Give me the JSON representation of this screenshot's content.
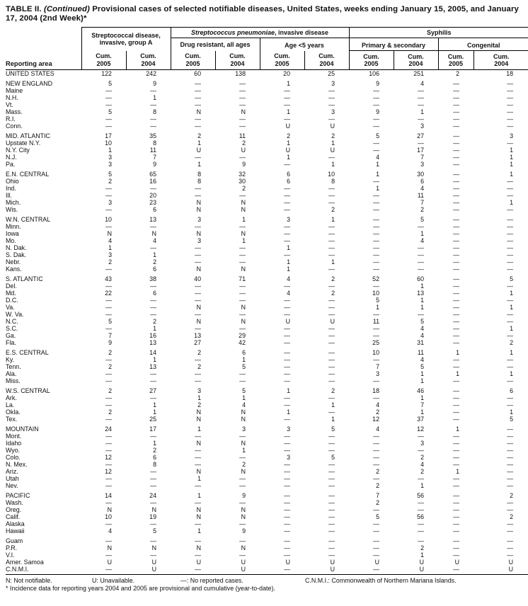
{
  "title": {
    "table_label": "TABLE II.",
    "continued": "(Continued)",
    "rest": " Provisional cases of selected notifiable diseases, United States, weeks ending January 15, 2005, and January 17, 2004 (2nd Week)*"
  },
  "header": {
    "stub": "Reporting area",
    "group_a": "Streptococcal disease, invasive, group A",
    "strep_pneumoniae_italic": "Streptococcus pneumoniae",
    "strep_pneumoniae_rest": ", invasive disease",
    "drug_resistant": "Drug resistant, all ages",
    "age_under5": "Age <5 years",
    "syphilis": "Syphilis",
    "primary_secondary": "Primary & secondary",
    "congenital": "Congenital",
    "cum_label": "Cum.",
    "years": [
      "2005",
      "2004",
      "2005",
      "2004",
      "2005",
      "2004",
      "2005",
      "2004",
      "2005",
      "2004"
    ]
  },
  "rows": [
    {
      "area": "UNITED STATES",
      "gap": false,
      "values": [
        "122",
        "242",
        "60",
        "138",
        "20",
        "25",
        "106",
        "251",
        "2",
        "18"
      ]
    },
    {
      "area": "NEW ENGLAND",
      "gap": true,
      "values": [
        "5",
        "9",
        "—",
        "—",
        "1",
        "3",
        "9",
        "4",
        "—",
        "—"
      ]
    },
    {
      "area": "Maine",
      "gap": false,
      "values": [
        "—",
        "—",
        "—",
        "—",
        "—",
        "—",
        "—",
        "—",
        "—",
        "—"
      ]
    },
    {
      "area": "N.H.",
      "gap": false,
      "values": [
        "—",
        "1",
        "—",
        "—",
        "—",
        "—",
        "—",
        "—",
        "—",
        "—"
      ]
    },
    {
      "area": "Vt.",
      "gap": false,
      "values": [
        "—",
        "—",
        "—",
        "—",
        "—",
        "—",
        "—",
        "—",
        "—",
        "—"
      ]
    },
    {
      "area": "Mass.",
      "gap": false,
      "values": [
        "5",
        "8",
        "N",
        "N",
        "1",
        "3",
        "9",
        "1",
        "—",
        "—"
      ]
    },
    {
      "area": "R.I.",
      "gap": false,
      "values": [
        "—",
        "—",
        "—",
        "—",
        "—",
        "—",
        "—",
        "—",
        "—",
        "—"
      ]
    },
    {
      "area": "Conn.",
      "gap": false,
      "values": [
        "—",
        "—",
        "—",
        "—",
        "U",
        "U",
        "—",
        "3",
        "—",
        "—"
      ]
    },
    {
      "area": "MID. ATLANTIC",
      "gap": true,
      "values": [
        "17",
        "35",
        "2",
        "11",
        "2",
        "2",
        "5",
        "27",
        "—",
        "3"
      ]
    },
    {
      "area": "Upstate N.Y.",
      "gap": false,
      "values": [
        "10",
        "8",
        "1",
        "2",
        "1",
        "1",
        "—",
        "—",
        "—",
        "—"
      ]
    },
    {
      "area": "N.Y. City",
      "gap": false,
      "values": [
        "1",
        "11",
        "U",
        "U",
        "U",
        "U",
        "—",
        "17",
        "—",
        "1"
      ]
    },
    {
      "area": "N.J.",
      "gap": false,
      "values": [
        "3",
        "7",
        "—",
        "—",
        "1",
        "—",
        "4",
        "7",
        "—",
        "1"
      ]
    },
    {
      "area": "Pa.",
      "gap": false,
      "values": [
        "3",
        "9",
        "1",
        "9",
        "—",
        "1",
        "1",
        "3",
        "—",
        "1"
      ]
    },
    {
      "area": "E.N. CENTRAL",
      "gap": true,
      "values": [
        "5",
        "65",
        "8",
        "32",
        "6",
        "10",
        "1",
        "30",
        "—",
        "1"
      ]
    },
    {
      "area": "Ohio",
      "gap": false,
      "values": [
        "2",
        "16",
        "8",
        "30",
        "6",
        "8",
        "—",
        "6",
        "—",
        "—"
      ]
    },
    {
      "area": "Ind.",
      "gap": false,
      "values": [
        "—",
        "—",
        "—",
        "2",
        "—",
        "—",
        "1",
        "4",
        "—",
        "—"
      ]
    },
    {
      "area": "Ill.",
      "gap": false,
      "values": [
        "—",
        "20",
        "—",
        "—",
        "—",
        "—",
        "—",
        "11",
        "—",
        "—"
      ]
    },
    {
      "area": "Mich.",
      "gap": false,
      "values": [
        "3",
        "23",
        "N",
        "N",
        "—",
        "—",
        "—",
        "7",
        "—",
        "1"
      ]
    },
    {
      "area": "Wis.",
      "gap": false,
      "values": [
        "—",
        "6",
        "N",
        "N",
        "—",
        "2",
        "—",
        "2",
        "—",
        "—"
      ]
    },
    {
      "area": "W.N. CENTRAL",
      "gap": true,
      "values": [
        "10",
        "13",
        "3",
        "1",
        "3",
        "1",
        "—",
        "5",
        "—",
        "—"
      ]
    },
    {
      "area": "Minn.",
      "gap": false,
      "values": [
        "—",
        "—",
        "—",
        "—",
        "—",
        "—",
        "—",
        "—",
        "—",
        "—"
      ]
    },
    {
      "area": "Iowa",
      "gap": false,
      "values": [
        "N",
        "N",
        "N",
        "N",
        "—",
        "—",
        "—",
        "1",
        "—",
        "—"
      ]
    },
    {
      "area": "Mo.",
      "gap": false,
      "values": [
        "4",
        "4",
        "3",
        "1",
        "—",
        "—",
        "—",
        "4",
        "—",
        "—"
      ]
    },
    {
      "area": "N. Dak.",
      "gap": false,
      "values": [
        "1",
        "—",
        "—",
        "—",
        "1",
        "—",
        "—",
        "—",
        "—",
        "—"
      ]
    },
    {
      "area": "S. Dak.",
      "gap": false,
      "values": [
        "3",
        "1",
        "—",
        "—",
        "—",
        "—",
        "—",
        "—",
        "—",
        "—"
      ]
    },
    {
      "area": "Nebr.",
      "gap": false,
      "values": [
        "2",
        "2",
        "—",
        "—",
        "1",
        "1",
        "—",
        "—",
        "—",
        "—"
      ]
    },
    {
      "area": "Kans.",
      "gap": false,
      "values": [
        "—",
        "6",
        "N",
        "N",
        "1",
        "—",
        "—",
        "—",
        "—",
        "—"
      ]
    },
    {
      "area": "S. ATLANTIC",
      "gap": true,
      "values": [
        "43",
        "38",
        "40",
        "71",
        "4",
        "2",
        "52",
        "60",
        "—",
        "5"
      ]
    },
    {
      "area": "Del.",
      "gap": false,
      "values": [
        "—",
        "—",
        "—",
        "—",
        "—",
        "—",
        "—",
        "1",
        "—",
        "—"
      ]
    },
    {
      "area": "Md.",
      "gap": false,
      "values": [
        "22",
        "6",
        "—",
        "—",
        "4",
        "2",
        "10",
        "13",
        "—",
        "1"
      ]
    },
    {
      "area": "D.C.",
      "gap": false,
      "values": [
        "—",
        "—",
        "—",
        "—",
        "—",
        "—",
        "5",
        "1",
        "—",
        "—"
      ]
    },
    {
      "area": "Va.",
      "gap": false,
      "values": [
        "—",
        "—",
        "N",
        "N",
        "—",
        "—",
        "1",
        "1",
        "—",
        "1"
      ]
    },
    {
      "area": "W. Va.",
      "gap": false,
      "values": [
        "—",
        "—",
        "—",
        "—",
        "—",
        "—",
        "—",
        "—",
        "—",
        "—"
      ]
    },
    {
      "area": "N.C.",
      "gap": false,
      "values": [
        "5",
        "2",
        "N",
        "N",
        "U",
        "U",
        "11",
        "5",
        "—",
        "—"
      ]
    },
    {
      "area": "S.C.",
      "gap": false,
      "values": [
        "—",
        "1",
        "—",
        "—",
        "—",
        "—",
        "—",
        "4",
        "—",
        "1"
      ]
    },
    {
      "area": "Ga.",
      "gap": false,
      "values": [
        "7",
        "16",
        "13",
        "29",
        "—",
        "—",
        "—",
        "4",
        "—",
        "—"
      ]
    },
    {
      "area": "Fla.",
      "gap": false,
      "values": [
        "9",
        "13",
        "27",
        "42",
        "—",
        "—",
        "25",
        "31",
        "—",
        "2"
      ]
    },
    {
      "area": "E.S. CENTRAL",
      "gap": true,
      "values": [
        "2",
        "14",
        "2",
        "6",
        "—",
        "—",
        "10",
        "11",
        "1",
        "1"
      ]
    },
    {
      "area": "Ky.",
      "gap": false,
      "values": [
        "—",
        "1",
        "—",
        "1",
        "—",
        "—",
        "—",
        "4",
        "—",
        "—"
      ]
    },
    {
      "area": "Tenn.",
      "gap": false,
      "values": [
        "2",
        "13",
        "2",
        "5",
        "—",
        "—",
        "7",
        "5",
        "—",
        "—"
      ]
    },
    {
      "area": "Ala.",
      "gap": false,
      "values": [
        "—",
        "—",
        "—",
        "—",
        "—",
        "—",
        "3",
        "1",
        "1",
        "1"
      ]
    },
    {
      "area": "Miss.",
      "gap": false,
      "values": [
        "—",
        "—",
        "—",
        "—",
        "—",
        "—",
        "—",
        "1",
        "—",
        "—"
      ]
    },
    {
      "area": "W.S. CENTRAL",
      "gap": true,
      "values": [
        "2",
        "27",
        "3",
        "5",
        "1",
        "2",
        "18",
        "46",
        "—",
        "6"
      ]
    },
    {
      "area": "Ark.",
      "gap": false,
      "values": [
        "—",
        "—",
        "1",
        "1",
        "—",
        "—",
        "—",
        "1",
        "—",
        "—"
      ]
    },
    {
      "area": "La.",
      "gap": false,
      "values": [
        "—",
        "1",
        "2",
        "4",
        "—",
        "1",
        "4",
        "7",
        "—",
        "—"
      ]
    },
    {
      "area": "Okla.",
      "gap": false,
      "values": [
        "2",
        "1",
        "N",
        "N",
        "1",
        "—",
        "2",
        "1",
        "—",
        "1"
      ]
    },
    {
      "area": "Tex.",
      "gap": false,
      "values": [
        "—",
        "25",
        "N",
        "N",
        "—",
        "1",
        "12",
        "37",
        "—",
        "5"
      ]
    },
    {
      "area": "MOUNTAIN",
      "gap": true,
      "values": [
        "24",
        "17",
        "1",
        "3",
        "3",
        "5",
        "4",
        "12",
        "1",
        "—"
      ]
    },
    {
      "area": "Mont.",
      "gap": false,
      "values": [
        "—",
        "—",
        "—",
        "—",
        "—",
        "—",
        "—",
        "—",
        "—",
        "—"
      ]
    },
    {
      "area": "Idaho",
      "gap": false,
      "values": [
        "—",
        "1",
        "N",
        "N",
        "—",
        "—",
        "—",
        "3",
        "—",
        "—"
      ]
    },
    {
      "area": "Wyo.",
      "gap": false,
      "values": [
        "—",
        "2",
        "—",
        "1",
        "—",
        "—",
        "—",
        "—",
        "—",
        "—"
      ]
    },
    {
      "area": "Colo.",
      "gap": false,
      "values": [
        "12",
        "6",
        "—",
        "—",
        "3",
        "5",
        "—",
        "2",
        "—",
        "—"
      ]
    },
    {
      "area": "N. Mex.",
      "gap": false,
      "values": [
        "—",
        "8",
        "—",
        "2",
        "—",
        "—",
        "—",
        "4",
        "—",
        "—"
      ]
    },
    {
      "area": "Ariz.",
      "gap": false,
      "values": [
        "12",
        "—",
        "N",
        "N",
        "—",
        "—",
        "2",
        "2",
        "1",
        "—"
      ]
    },
    {
      "area": "Utah",
      "gap": false,
      "values": [
        "—",
        "—",
        "1",
        "—",
        "—",
        "—",
        "—",
        "—",
        "—",
        "—"
      ]
    },
    {
      "area": "Nev.",
      "gap": false,
      "values": [
        "—",
        "—",
        "—",
        "—",
        "—",
        "—",
        "2",
        "1",
        "—",
        "—"
      ]
    },
    {
      "area": "PACIFIC",
      "gap": true,
      "values": [
        "14",
        "24",
        "1",
        "9",
        "—",
        "—",
        "7",
        "56",
        "—",
        "2"
      ]
    },
    {
      "area": "Wash.",
      "gap": false,
      "values": [
        "—",
        "—",
        "—",
        "—",
        "—",
        "—",
        "2",
        "—",
        "—",
        "—"
      ]
    },
    {
      "area": "Oreg.",
      "gap": false,
      "values": [
        "N",
        "N",
        "N",
        "N",
        "—",
        "—",
        "—",
        "—",
        "—",
        "—"
      ]
    },
    {
      "area": "Calif.",
      "gap": false,
      "values": [
        "10",
        "19",
        "N",
        "N",
        "—",
        "—",
        "5",
        "56",
        "—",
        "2"
      ]
    },
    {
      "area": "Alaska",
      "gap": false,
      "values": [
        "—",
        "—",
        "—",
        "—",
        "—",
        "—",
        "—",
        "—",
        "—",
        "—"
      ]
    },
    {
      "area": "Hawaii",
      "gap": false,
      "values": [
        "4",
        "5",
        "1",
        "9",
        "—",
        "—",
        "—",
        "—",
        "—",
        "—"
      ]
    },
    {
      "area": "Guam",
      "gap": true,
      "values": [
        "—",
        "—",
        "—",
        "—",
        "—",
        "—",
        "—",
        "—",
        "—",
        "—"
      ]
    },
    {
      "area": "P.R.",
      "gap": false,
      "values": [
        "N",
        "N",
        "N",
        "N",
        "—",
        "—",
        "—",
        "2",
        "—",
        "—"
      ]
    },
    {
      "area": "V.I.",
      "gap": false,
      "values": [
        "—",
        "—",
        "—",
        "—",
        "—",
        "—",
        "—",
        "1",
        "—",
        "—"
      ]
    },
    {
      "area": "Amer. Samoa",
      "gap": false,
      "values": [
        "U",
        "U",
        "U",
        "U",
        "U",
        "U",
        "U",
        "U",
        "U",
        "U"
      ]
    },
    {
      "area": "C.N.M.I.",
      "gap": false,
      "values": [
        "—",
        "U",
        "—",
        "U",
        "—",
        "U",
        "—",
        "U",
        "—",
        "U"
      ]
    }
  ],
  "footnotes": {
    "line1_items": [
      "N: Not notifiable.",
      "U: Unavailable.",
      "—: No reported cases.",
      "C.N.M.I.: Commonwealth of Northern Mariana Islands."
    ],
    "line2": "* Incidence data for reporting years 2004 and 2005 are provisional and cumulative (year-to-date)."
  }
}
